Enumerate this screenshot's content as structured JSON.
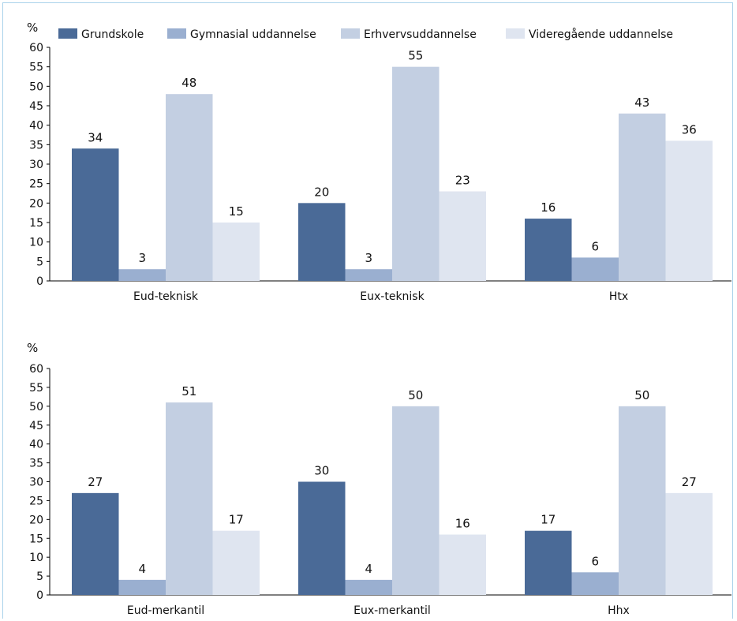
{
  "legend": {
    "items": [
      {
        "label": "Grundskole",
        "color": "#4a6a97"
      },
      {
        "label": "Gymnasial uddannelse",
        "color": "#9aafd0"
      },
      {
        "label": "Erhvervsuddannelse",
        "color": "#c3cfe2"
      },
      {
        "label": "Videregående uddannelse",
        "color": "#dfe5f0"
      }
    ]
  },
  "chart_data": [
    {
      "type": "bar",
      "ylabel": "%",
      "ylim": [
        0,
        60
      ],
      "yticks": [
        0,
        5,
        10,
        15,
        20,
        25,
        30,
        35,
        40,
        45,
        50,
        55,
        60
      ],
      "categories": [
        "Eud-teknisk",
        "Eux-teknisk",
        "Htx"
      ],
      "legend_position": "top",
      "series": [
        {
          "name": "Grundskole",
          "values": [
            34,
            20,
            16
          ]
        },
        {
          "name": "Gymnasial uddannelse",
          "values": [
            3,
            3,
            6
          ]
        },
        {
          "name": "Erhvervsuddannelse",
          "values": [
            48,
            55,
            43
          ]
        },
        {
          "name": "Videregående uddannelse",
          "values": [
            15,
            23,
            36
          ]
        }
      ]
    },
    {
      "type": "bar",
      "ylabel": "%",
      "ylim": [
        0,
        60
      ],
      "yticks": [
        0,
        5,
        10,
        15,
        20,
        25,
        30,
        35,
        40,
        45,
        50,
        55,
        60
      ],
      "categories": [
        "Eud-merkantil",
        "Eux-merkantil",
        "Hhx"
      ],
      "series": [
        {
          "name": "Grundskole",
          "values": [
            27,
            30,
            17
          ]
        },
        {
          "name": "Gymnasial uddannelse",
          "values": [
            4,
            4,
            6
          ]
        },
        {
          "name": "Erhvervsuddannelse",
          "values": [
            51,
            50,
            50
          ]
        },
        {
          "name": "Videregående uddannelse",
          "values": [
            17,
            16,
            27
          ]
        }
      ]
    }
  ]
}
